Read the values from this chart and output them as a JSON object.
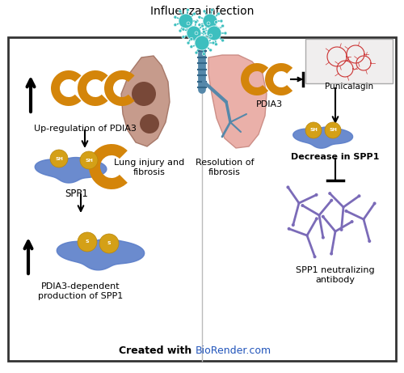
{
  "title": "Influenza infection",
  "bg_color": "#ffffff",
  "box_color": "#333333",
  "text_color": "#000000",
  "arrow_color": "#000000",
  "pdia3_color": "#D4850A",
  "spp1_color": "#5B7EC9",
  "virus_color": "#3DBFBF",
  "antibody_color": "#7B6BB8",
  "created_with": "Created with ",
  "biorender": "BioRender.com",
  "labels": {
    "up_regulation": "Up-regulation of PDIA3",
    "lung_injury": "Lung injury and\nfibrosis",
    "spp1": "SPP1",
    "pdia3_dependent": "PDIA3-dependent\nproduction of SPP1",
    "pdia3": "PDIA3",
    "resolution": "Resolution of\nfibrosis",
    "punicalagin": "Punicalagin",
    "decrease_spp1": "Decrease in SPP1",
    "neutralizing": "SPP1 neutralizing\nantibody"
  }
}
